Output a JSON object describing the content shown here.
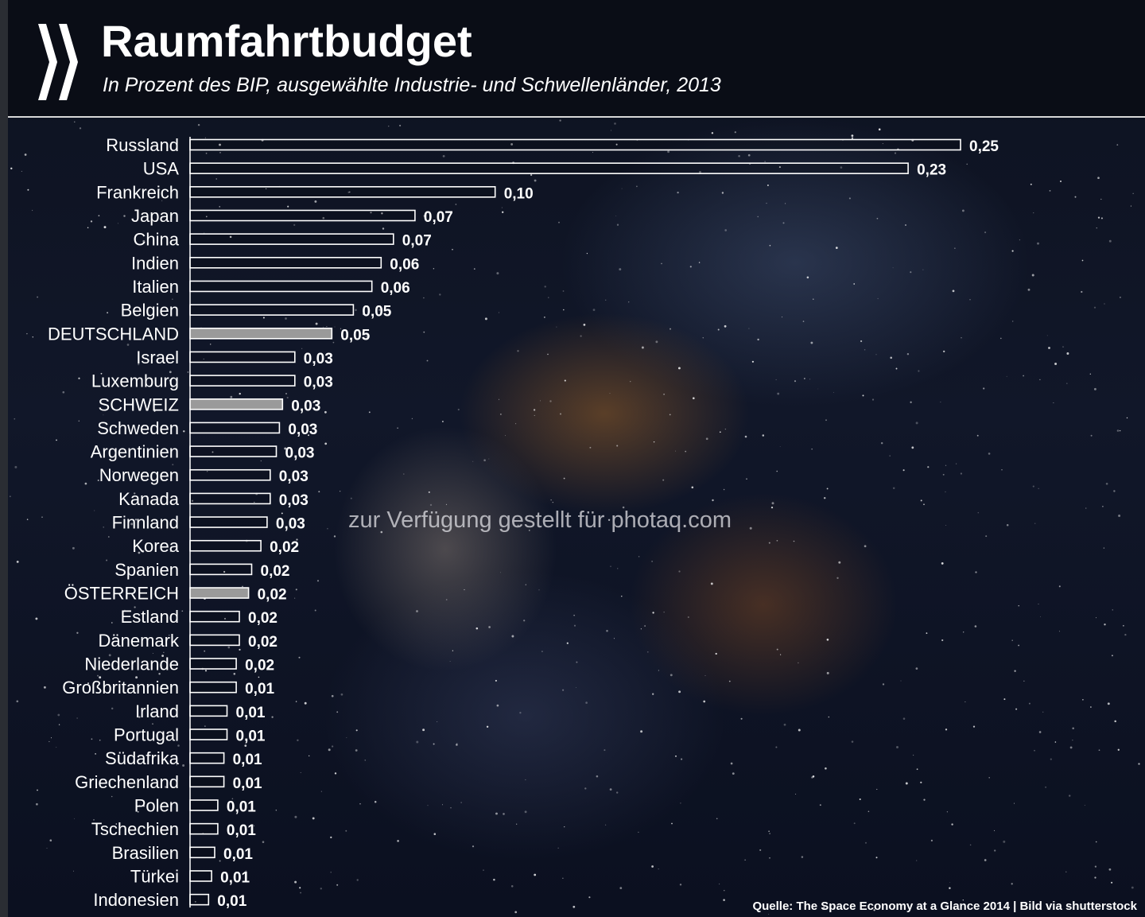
{
  "header": {
    "title": "Raumfahrtbudget",
    "subtitle": "In Prozent des BIP, ausgewählte Industrie-  und Schwellenländer, 2013"
  },
  "watermark": "zur Verfügung gestellt für photaq.com",
  "source": "Quelle: The Space Economy at a Glance 2014 | Bild via shutterstock",
  "colors": {
    "bar_outline": "#ffffff",
    "highlight_fill": "#9a9a9a",
    "background": "#0b0f1c"
  },
  "chart_data": {
    "type": "bar",
    "orientation": "horizontal",
    "title": "Raumfahrtbudget",
    "subtitle": "In Prozent des BIP, ausgewählte Industrie-  und Schwellenländer, 2013",
    "xlabel": "",
    "ylabel": "",
    "xlim": [
      0,
      0.25
    ],
    "grid": false,
    "legend": "none",
    "categories": [
      "Russland",
      "USA",
      "Frankreich",
      "Japan",
      "China",
      "Indien",
      "Italien",
      "Belgien",
      "DEUTSCHLAND",
      "Israel",
      "Luxemburg",
      "SCHWEIZ",
      "Schweden",
      "Argentinien",
      "Norwegen",
      "Kanada",
      "Finnland",
      "Korea",
      "Spanien",
      "ÖSTERREICH",
      "Estland",
      "Dänemark",
      "Niederlande",
      "Großbritannien",
      "Irland",
      "Portugal",
      "Südafrika",
      "Griechenland",
      "Polen",
      "Tschechien",
      "Brasilien",
      "Türkei",
      "Indonesien"
    ],
    "values": [
      0.25,
      0.233,
      0.099,
      0.073,
      0.066,
      0.062,
      0.059,
      0.053,
      0.046,
      0.034,
      0.034,
      0.03,
      0.029,
      0.028,
      0.026,
      0.026,
      0.025,
      0.023,
      0.02,
      0.019,
      0.016,
      0.016,
      0.015,
      0.015,
      0.012,
      0.012,
      0.011,
      0.011,
      0.009,
      0.009,
      0.008,
      0.007,
      0.006
    ],
    "value_labels": [
      "0,25",
      "0,23",
      "0,10",
      "0,07",
      "0,07",
      "0,06",
      "0,06",
      "0,05",
      "0,05",
      "0,03",
      "0,03",
      "0,03",
      "0,03",
      "0,03",
      "0,03",
      "0,03",
      "0,03",
      "0,02",
      "0,02",
      "0,02",
      "0,02",
      "0,02",
      "0,02",
      "0,01",
      "0,01",
      "0,01",
      "0,01",
      "0,01",
      "0,01",
      "0,01",
      "0,01",
      "0,01",
      "0,01"
    ],
    "highlighted": [
      "DEUTSCHLAND",
      "SCHWEIZ",
      "ÖSTERREICH"
    ]
  }
}
